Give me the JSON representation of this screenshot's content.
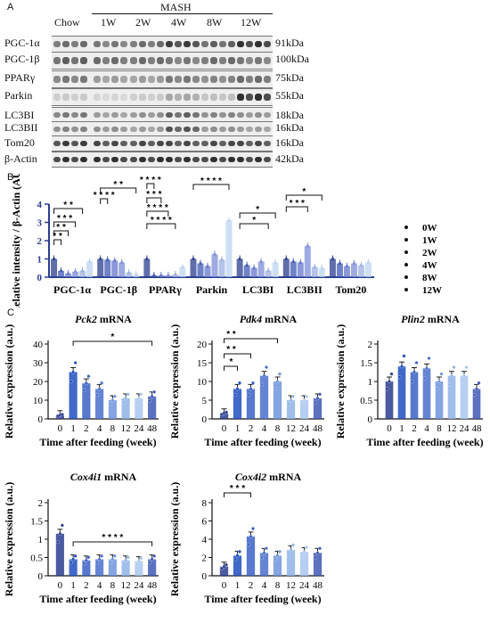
{
  "figure": {
    "panel_a": "A",
    "panel_b": "B",
    "panel_c": "C"
  },
  "blot": {
    "header_group": "MASH",
    "lanes": [
      "Chow",
      "1W",
      "2W",
      "4W",
      "8W",
      "12W"
    ],
    "rows": [
      {
        "label": "PGC-1α",
        "kda": "91kDa",
        "intensity": [
          0.55,
          0.5,
          0.55,
          0.75,
          0.6,
          0.8
        ]
      },
      {
        "label": "PGC-1β",
        "kda": "100kDa",
        "intensity": [
          0.6,
          0.55,
          0.55,
          0.5,
          0.55,
          0.5
        ]
      },
      {
        "label": "PPARγ",
        "kda": "75kDa",
        "intensity": [
          0.5,
          0.35,
          0.35,
          0.5,
          0.45,
          0.55
        ]
      },
      {
        "label": "Parkin",
        "kda": "55kDa",
        "intensity": [
          0.15,
          0.1,
          0.15,
          0.3,
          0.2,
          0.8
        ]
      },
      {
        "label": "LC3BI",
        "kda": "18kDa",
        "intensity": [
          0.5,
          0.35,
          0.4,
          0.6,
          0.45,
          0.4
        ]
      },
      {
        "label": "LC3BII",
        "kda": "16kDa",
        "intensity": [
          0.45,
          0.4,
          0.35,
          0.65,
          0.4,
          0.35
        ]
      },
      {
        "label": "Tom20",
        "kda": "16kDa",
        "intensity": [
          0.75,
          0.7,
          0.7,
          0.7,
          0.7,
          0.7
        ]
      },
      {
        "label": "β-Actin",
        "kda": "42kDa",
        "intensity": [
          0.8,
          0.8,
          0.8,
          0.8,
          0.8,
          0.8
        ]
      }
    ]
  },
  "colors": [
    "#2b3d8f",
    "#3f58b5",
    "#6476cc",
    "#7d8ed8",
    "#9cb0e2",
    "#bcd4f0"
  ],
  "chart_data": [
    {
      "type": "bar",
      "panel": "B",
      "ylabel": "Relative intensity / β-Actin (AU)",
      "ylim": [
        0,
        4
      ],
      "yticks": [
        0,
        1,
        2,
        3,
        4
      ],
      "categories": [
        "PGC-1α",
        "PGC-1β",
        "PPARγ",
        "Parkin",
        "LC3BI",
        "LC3BII",
        "Tom20"
      ],
      "legend_position": "right",
      "series": [
        {
          "name": "0W",
          "values": [
            1.0,
            1.0,
            1.0,
            1.0,
            1.0,
            1.0,
            1.0
          ]
        },
        {
          "name": "1W",
          "values": [
            0.35,
            0.95,
            0.1,
            0.75,
            0.65,
            0.85,
            0.75
          ]
        },
        {
          "name": "2W",
          "values": [
            0.2,
            0.9,
            0.1,
            0.6,
            0.5,
            0.8,
            0.6
          ]
        },
        {
          "name": "4W",
          "values": [
            0.3,
            0.8,
            0.1,
            1.25,
            0.85,
            1.7,
            0.75
          ]
        },
        {
          "name": "8W",
          "values": [
            0.35,
            0.25,
            0.15,
            0.95,
            0.35,
            0.55,
            0.65
          ]
        },
        {
          "name": "12W",
          "values": [
            0.85,
            0.15,
            0.55,
            3.1,
            0.8,
            0.5,
            0.8
          ]
        }
      ],
      "annotations": [
        "* *",
        "* *",
        "* * *",
        "* *",
        "* * * *",
        "* *",
        "* * * *",
        "* * *",
        "* * * *",
        "* * * *",
        "* * * *",
        "*",
        "*",
        "* * *",
        "*"
      ]
    },
    {
      "type": "bar",
      "panel": "C",
      "title": "Pck2 mRNA",
      "ylabel": "Relative expression (a.u.)",
      "xlabel": "Time after feeding (week)",
      "categories": [
        "0",
        "1",
        "2",
        "4",
        "8",
        "12",
        "24",
        "48"
      ],
      "values": [
        2.0,
        25.0,
        19.0,
        16.0,
        10.0,
        11.0,
        11.0,
        12.0
      ],
      "ylim": [
        0,
        40
      ],
      "yticks": [
        0,
        10,
        20,
        30,
        40
      ],
      "annotations": [
        "*"
      ]
    },
    {
      "type": "bar",
      "panel": "C",
      "title": "Pdk4 mRNA",
      "ylabel": "Relative expression (a.u.)",
      "xlabel": "Time after feeding (week)",
      "categories": [
        "0",
        "1",
        "2",
        "4",
        "8",
        "12",
        "24",
        "48"
      ],
      "values": [
        1.5,
        8.0,
        8.0,
        11.5,
        10.0,
        5.0,
        5.0,
        5.5
      ],
      "ylim": [
        0,
        20
      ],
      "yticks": [
        0,
        5,
        10,
        15,
        20
      ],
      "annotations": [
        "*",
        "* *",
        "* *"
      ]
    },
    {
      "type": "bar",
      "panel": "C",
      "title": "Plin2 mRNA",
      "ylabel": "Relative expression (a.u.)",
      "xlabel": "Time after feeding (week)",
      "categories": [
        "0",
        "1",
        "2",
        "4",
        "8",
        "12",
        "24",
        "48"
      ],
      "values": [
        1.0,
        1.4,
        1.25,
        1.35,
        1.0,
        1.15,
        1.15,
        0.8
      ],
      "ylim": [
        0,
        2.0
      ],
      "yticks": [
        0,
        0.5,
        1.0,
        1.5,
        2.0
      ],
      "annotations": []
    },
    {
      "type": "bar",
      "panel": "C",
      "title": "Cox4i1 mRNA",
      "ylabel": "Relative expression (a.u.)",
      "xlabel": "Time after feeding (week)",
      "categories": [
        "0",
        "1",
        "2",
        "4",
        "8",
        "12",
        "24",
        "48"
      ],
      "values": [
        1.15,
        0.45,
        0.42,
        0.45,
        0.45,
        0.42,
        0.4,
        0.45
      ],
      "ylim": [
        0,
        2.0
      ],
      "yticks": [
        0,
        0.5,
        1.0,
        1.5,
        2.0
      ],
      "annotations": [
        "* * * *"
      ]
    },
    {
      "type": "bar",
      "panel": "C",
      "title": "Cox4i2 mRNA",
      "ylabel": "Relative expression (a.u.)",
      "xlabel": "Time after feeding (week)",
      "categories": [
        "0",
        "1",
        "2",
        "4",
        "8",
        "12",
        "24",
        "48"
      ],
      "values": [
        1.0,
        2.2,
        4.3,
        2.5,
        2.2,
        2.8,
        2.6,
        2.5
      ],
      "ylim": [
        0,
        8
      ],
      "yticks": [
        0,
        2,
        4,
        6,
        8
      ],
      "annotations": [
        "* * *"
      ]
    }
  ]
}
